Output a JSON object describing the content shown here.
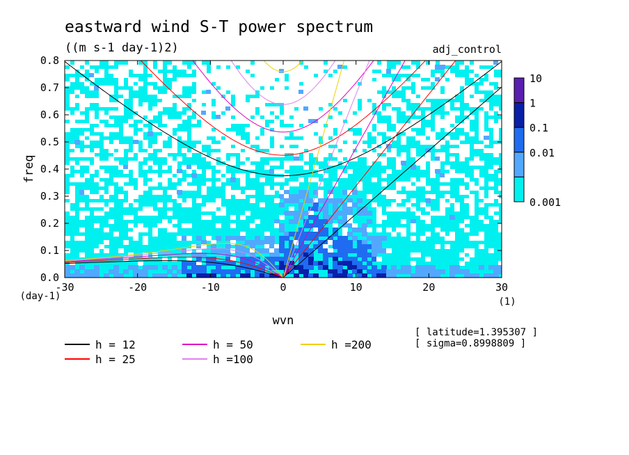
{
  "chart_data": {
    "type": "heatmap",
    "title": "eastward wind S-T power spectrum",
    "subtitle": "((m s-1 day-1)2)",
    "run_label": "adj_control",
    "xlabel": "wvn",
    "x_unit": "(1)",
    "ylabel": "freq",
    "y_unit": "(day-1)",
    "xlim": [
      -30,
      30
    ],
    "ylim": [
      0,
      0.8
    ],
    "x_ticks": [
      "-30",
      "-20",
      "-10",
      "0",
      "10",
      "20",
      "30"
    ],
    "y_ticks": [
      "0.0",
      "0.1",
      "0.2",
      "0.3",
      "0.4",
      "0.5",
      "0.6",
      "0.7",
      "0.8"
    ],
    "colorbar": {
      "levels": [
        "10",
        "1",
        "0.1",
        "0.01",
        "0.001"
      ],
      "colors": [
        "#5a1fb0",
        "#0a1fa8",
        "#1f6cf0",
        "#52a8ff",
        "#00f0f0"
      ]
    },
    "fill_colors": {
      "low": "#00f0f0",
      "mid": "#52a8ff",
      "high": "#1f6cf0",
      "peak": "#0a1fa8"
    },
    "dispersion_curves": [
      {
        "label": "h = 12",
        "h": 12,
        "color": "#000000"
      },
      {
        "label": "h = 25",
        "h": 25,
        "color": "#ff0000"
      },
      {
        "label": "h = 50",
        "h": 50,
        "color": "#e000c0"
      },
      {
        "label": "h =100",
        "h": 100,
        "color": "#e080f0"
      },
      {
        "label": "h =200",
        "h": 200,
        "color": "#f0d000"
      }
    ],
    "annotations": [
      "[ latitude=1.395307 ]",
      "[ sigma=0.8998809 ]"
    ]
  }
}
